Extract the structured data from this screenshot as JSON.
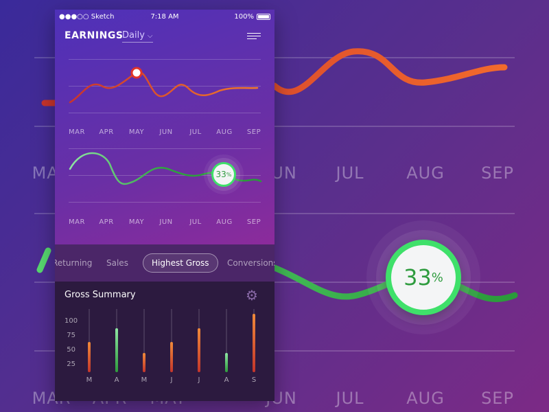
{
  "status_bar": {
    "carrier": "●●●○○ Sketch",
    "time": "7:18 AM",
    "battery": "100%"
  },
  "header": {
    "title": "EARNINGS",
    "period": "Daily"
  },
  "months": [
    "MAR",
    "APR",
    "MAY",
    "JUN",
    "JUL",
    "AUG",
    "SEP"
  ],
  "badge": {
    "value": "33",
    "unit": "%"
  },
  "tabs": [
    "Returning",
    "Sales",
    "Highest Gross",
    "Conversions"
  ],
  "active_tab": "Highest Gross",
  "summary": {
    "title": "Gross Summary"
  },
  "chart_data": {
    "type": "bar",
    "categories": [
      "M",
      "A",
      "M",
      "J",
      "J",
      "A",
      "S"
    ],
    "values": [
      48,
      70,
      30,
      48,
      70,
      30,
      92
    ],
    "colors": [
      "red",
      "green",
      "red",
      "red",
      "red",
      "green",
      "red"
    ],
    "yticks": [
      "100",
      "75",
      "50",
      "25"
    ],
    "ylim": [
      0,
      100
    ]
  },
  "colors": {
    "accent_red": "#e04a2f",
    "accent_green": "#3fe06a"
  },
  "icons": {
    "menu": "menu-icon",
    "settings": "gear-icon",
    "wifi": "wifi-icon"
  }
}
